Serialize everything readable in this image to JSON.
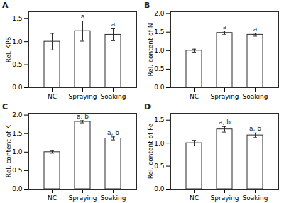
{
  "chart_data": [
    {
      "type": "bar",
      "title": "A",
      "ylabel": "Rel. KPS",
      "categories": [
        "NC",
        "Spraying",
        "Soaking"
      ],
      "values": [
        1.0,
        1.23,
        1.15
      ],
      "errors": [
        0.18,
        0.22,
        0.13
      ],
      "color": "#ffffff",
      "ylim": [
        0.0,
        1.65
      ],
      "yticks": [
        {
          "value": 0.0,
          "label": "0.0"
        },
        0.5,
        {
          "value": 1.0,
          "label": "1.0"
        },
        1.5
      ],
      "annotations": [
        {
          "category": "Spraying",
          "text": "a"
        },
        {
          "category": "Soaking",
          "text": "a"
        }
      ]
    },
    {
      "type": "bar",
      "title": "B",
      "ylabel": "Rel. content of N",
      "categories": [
        "NC",
        "Spraying",
        "Soaking"
      ],
      "values": [
        1.0,
        1.48,
        1.43
      ],
      "errors": [
        0.04,
        0.05,
        0.04
      ],
      "color": "#ffffff",
      "ylim": [
        0.0,
        2.05
      ],
      "yticks": [
        {
          "value": 0.0,
          "label": "0.0"
        },
        0.5,
        {
          "value": 1.0,
          "label": "1.0"
        },
        1.5,
        {
          "value": 2.0,
          "label": "2.0"
        }
      ],
      "annotations": [
        {
          "category": "Spraying",
          "text": "a"
        },
        {
          "category": "Soaking",
          "text": "a"
        }
      ]
    },
    {
      "type": "bar",
      "title": "C",
      "ylabel": "Rel. content of K",
      "categories": [
        "NC",
        "Spraying",
        "Soaking"
      ],
      "values": [
        1.0,
        1.82,
        1.37
      ],
      "errors": [
        0.03,
        0.03,
        0.04
      ],
      "color": "#ffffff",
      "ylim": [
        0.0,
        2.05
      ],
      "yticks": [
        {
          "value": 0.0,
          "label": "0.0"
        },
        0.5,
        {
          "value": 1.0,
          "label": "1.0"
        },
        1.5,
        {
          "value": 2.0,
          "label": "2.0"
        }
      ],
      "annotations": [
        {
          "category": "Spraying",
          "text": "a, b"
        },
        {
          "category": "Soaking",
          "text": "a, b"
        }
      ]
    },
    {
      "type": "bar",
      "title": "D",
      "ylabel": "Rel. content of Fe",
      "categories": [
        "NC",
        "Spraying",
        "Soaking"
      ],
      "values": [
        1.0,
        1.3,
        1.17
      ],
      "errors": [
        0.06,
        0.06,
        0.05
      ],
      "color": "#ffffff",
      "ylim": [
        0.0,
        1.65
      ],
      "yticks": [
        {
          "value": 0.0,
          "label": "0.0"
        },
        0.5,
        {
          "value": 1.0,
          "label": "1.0"
        },
        1.5
      ],
      "annotations": [
        {
          "category": "Spraying",
          "text": "a, b"
        },
        {
          "category": "Soaking",
          "text": "a, b"
        }
      ]
    }
  ]
}
